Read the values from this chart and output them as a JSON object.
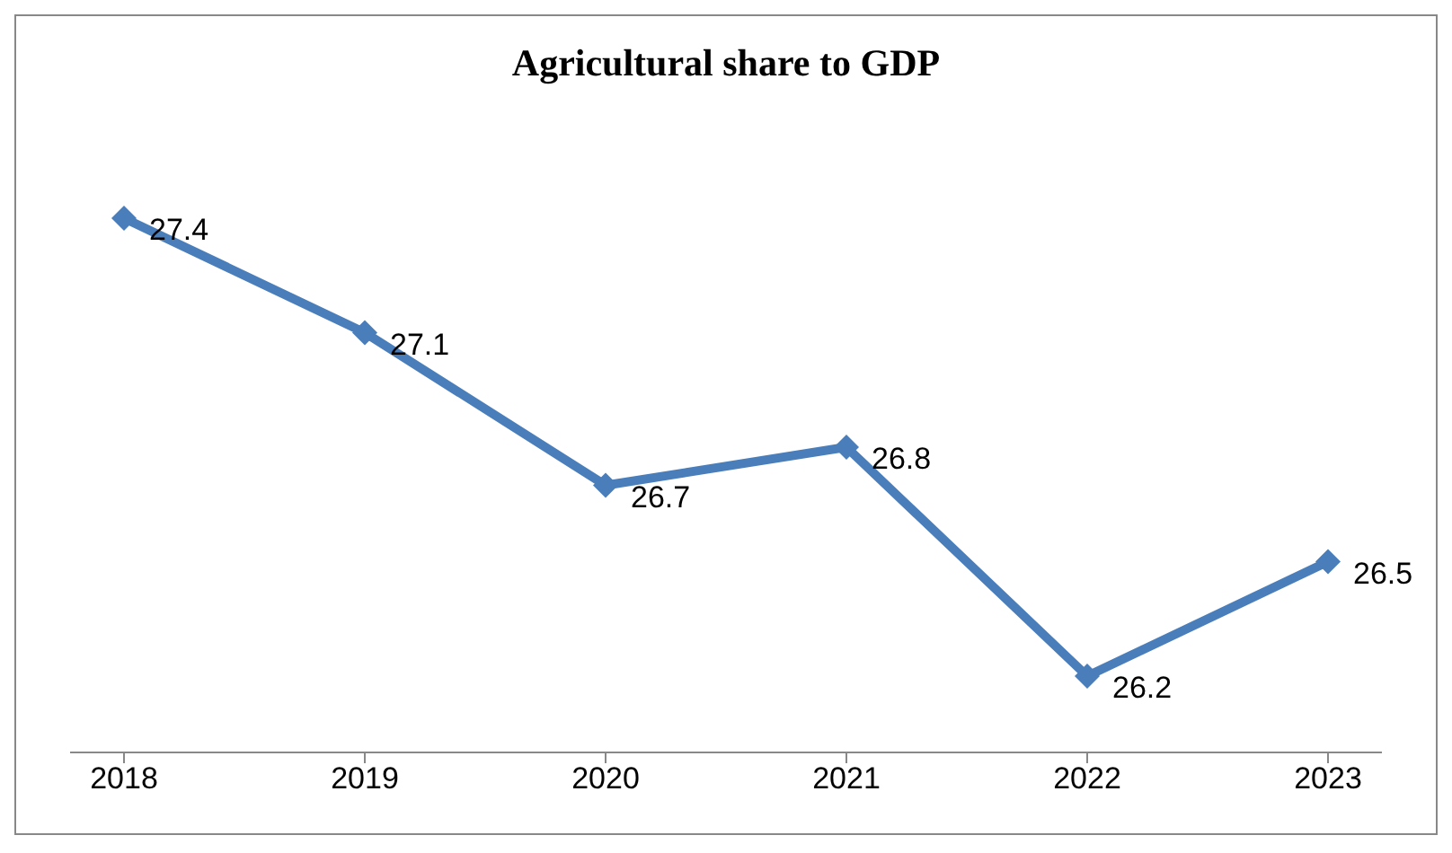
{
  "chart_data": {
    "type": "line",
    "title": "Agricultural share to GDP",
    "categories": [
      "2018",
      "2019",
      "2020",
      "2021",
      "2022",
      "2023"
    ],
    "series": [
      {
        "color": "#4a7ebb",
        "values": [
          27.4,
          27.1,
          26.7,
          26.8,
          26.2,
          26.5
        ]
      }
    ],
    "data_labels": true,
    "marker": "diamond",
    "grid": false,
    "legend": false
  }
}
